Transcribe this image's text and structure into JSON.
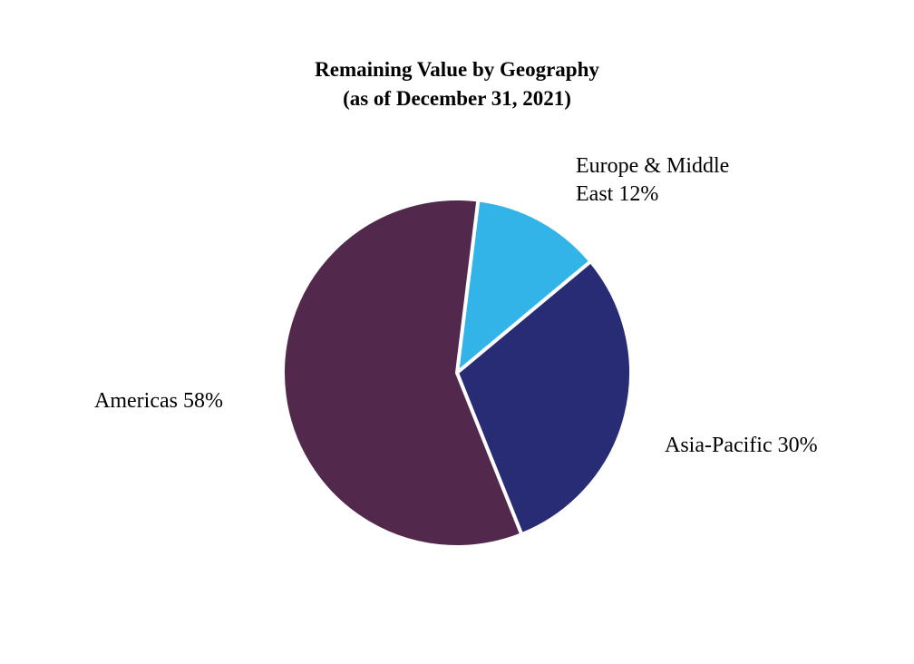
{
  "chart_data": {
    "type": "pie",
    "title": "Remaining Value by Geography",
    "subtitle": "(as of December 31, 2021)",
    "start_angle_deg": 7,
    "direction": "clockwise",
    "slices": [
      {
        "key": "europe-middle-east",
        "label": "Europe & Middle East 12%",
        "label_lines": [
          "Europe & Middle",
          "East 12%"
        ],
        "value": 12,
        "color": "#33b4e8"
      },
      {
        "key": "asia-pacific",
        "label": "Asia-Pacific 30%",
        "label_lines": [
          "Asia-Pacific 30%"
        ],
        "value": 30,
        "color": "#282c74"
      },
      {
        "key": "americas",
        "label": "Americas 58%",
        "label_lines": [
          "Americas 58%"
        ],
        "value": 58,
        "color": "#52284c"
      }
    ],
    "edge_color": "#ffffff",
    "legend": "none"
  }
}
